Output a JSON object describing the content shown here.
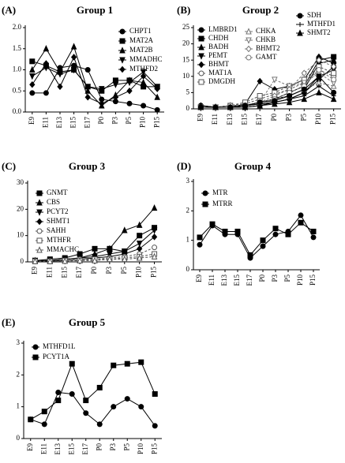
{
  "chart_data": [
    {
      "type": "line",
      "label": "(A)",
      "title": "Group 1",
      "categories": [
        "E9",
        "E11",
        "E13",
        "E15",
        "E17",
        "P0",
        "P3",
        "P5",
        "P10",
        "P15"
      ],
      "ylim": [
        0,
        2
      ],
      "yticks": [
        {
          "value": 0,
          "label": "0.0"
        },
        {
          "value": 0.5,
          "label": "0.5"
        },
        {
          "value": 1,
          "label": "1.0"
        },
        {
          "value": 1.5,
          "label": "1.5"
        },
        {
          "value": 2,
          "label": "2.0"
        }
      ],
      "series": [
        {
          "name": "CHPT1",
          "color": "#000000",
          "marker": "circle",
          "values": [
            0.45,
            0.45,
            1.05,
            1.1,
            1.0,
            0.3,
            0.25,
            0.2,
            0.15,
            0.05
          ]
        },
        {
          "name": "MAT2A",
          "color": "#000000",
          "marker": "square",
          "values": [
            1.2,
            1.1,
            0.95,
            1.0,
            0.6,
            0.5,
            0.75,
            0.75,
            0.6,
            0.6
          ]
        },
        {
          "name": "MAT2B",
          "color": "#000000",
          "marker": "triangle",
          "values": [
            1.0,
            1.5,
            0.95,
            1.55,
            0.5,
            0.15,
            0.4,
            0.75,
            0.7,
            0.35
          ]
        },
        {
          "name": "MMADHC",
          "color": "#000000",
          "marker": "triangle-down",
          "values": [
            0.85,
            1.05,
            0.9,
            1.0,
            0.6,
            0.55,
            0.65,
            0.7,
            0.95,
            0.6
          ]
        },
        {
          "name": "MTHFD2",
          "color": "#000000",
          "marker": "diamond",
          "values": [
            0.65,
            1.15,
            0.6,
            1.3,
            0.35,
            0.2,
            0.35,
            0.5,
            0.85,
            0.55
          ]
        }
      ]
    },
    {
      "type": "line",
      "label": "(B)",
      "title": "Group 2",
      "categories": [
        "E9",
        "E11",
        "E13",
        "E15",
        "E17",
        "P0",
        "P3",
        "P5",
        "P10",
        "P15"
      ],
      "ylim": [
        0,
        25
      ],
      "yticks": [
        0,
        5,
        10,
        15,
        20,
        25
      ],
      "series": [
        {
          "name": "LMBRD1",
          "color": "#000000",
          "marker": "circle",
          "values": [
            1,
            0.5,
            0.5,
            0.5,
            1,
            2,
            3,
            5,
            9,
            13
          ]
        },
        {
          "name": "CHDH",
          "color": "#000000",
          "marker": "square",
          "values": [
            0.5,
            0.5,
            0.5,
            1,
            2,
            3,
            5,
            7,
            15,
            16
          ]
        },
        {
          "name": "BADH",
          "color": "#000000",
          "marker": "triangle",
          "values": [
            0.5,
            0.5,
            1,
            1,
            2,
            3,
            4,
            6,
            14,
            15
          ]
        },
        {
          "name": "PEMT",
          "color": "#000000",
          "marker": "triangle-down",
          "values": [
            0.5,
            0.5,
            0.5,
            1,
            1.5,
            2,
            3,
            5,
            10,
            12
          ]
        },
        {
          "name": "BHMT",
          "color": "#000000",
          "marker": "diamond",
          "values": [
            1,
            0.5,
            0.5,
            1.5,
            8.5,
            6,
            7,
            9,
            16,
            14
          ]
        },
        {
          "name": "MAT1A",
          "color": "#555555",
          "marker": "circle-open",
          "values": [
            0.5,
            0.5,
            1,
            1.5,
            3,
            4.5,
            6,
            8,
            12,
            10
          ]
        },
        {
          "name": "DMGDH",
          "color": "#555555",
          "marker": "square-open",
          "values": [
            0.5,
            0.5,
            1,
            2,
            4,
            5,
            7,
            9,
            13,
            11
          ]
        },
        {
          "name": "CHKA",
          "color": "#777777",
          "marker": "triangle-open",
          "values": [
            0.5,
            0.5,
            1,
            1,
            2,
            3,
            4,
            6,
            8,
            7
          ]
        },
        {
          "name": "CHKB",
          "color": "#777777",
          "marker": "triangle-down-open",
          "values": [
            0.5,
            0.5,
            0.5,
            1,
            2,
            9,
            7,
            8,
            11,
            8
          ]
        },
        {
          "name": "BHMT2",
          "color": "#777777",
          "marker": "diamond-open",
          "values": [
            0.5,
            0.5,
            0.5,
            1,
            2,
            4,
            6,
            11,
            15,
            13
          ]
        },
        {
          "name": "GAMT",
          "color": "#777777",
          "marker": "circle-open",
          "values": [
            0.5,
            0.5,
            1,
            1,
            2,
            3,
            5,
            7,
            12,
            9
          ]
        },
        {
          "name": "SDH",
          "color": "#000000",
          "marker": "circle",
          "values": [
            0.5,
            0.5,
            0.5,
            1,
            2,
            2.5,
            4,
            6,
            10,
            5
          ]
        },
        {
          "name": "MTHFD1",
          "color": "#000000",
          "marker": "plus",
          "values": [
            1,
            0.5,
            0.5,
            1,
            1.5,
            2,
            3,
            4,
            7,
            4
          ]
        },
        {
          "name": "SHMT2",
          "color": "#000000",
          "marker": "triangle",
          "values": [
            0.5,
            0.5,
            0.5,
            0.5,
            1,
            1.5,
            2,
            3,
            5,
            3
          ]
        }
      ]
    },
    {
      "type": "line",
      "label": "(C)",
      "title": "Group 3",
      "categories": [
        "E9",
        "E11",
        "E15",
        "E17",
        "P0",
        "P3",
        "P5",
        "P10",
        "P15"
      ],
      "ylim": [
        0,
        30
      ],
      "yticks": [
        0,
        10,
        20,
        30
      ],
      "series": [
        {
          "name": "GNMT",
          "color": "#000000",
          "marker": "square",
          "values": [
            0.5,
            1,
            1.5,
            3,
            5,
            5,
            4,
            10,
            13
          ]
        },
        {
          "name": "CBS",
          "color": "#000000",
          "marker": "triangle",
          "values": [
            0.5,
            0.5,
            1,
            1.5,
            3,
            5,
            12,
            14,
            20.5
          ]
        },
        {
          "name": "PCYT2",
          "color": "#000000",
          "marker": "triangle-down",
          "values": [
            0.5,
            0.5,
            1,
            1.5,
            2,
            3,
            4,
            7,
            12
          ]
        },
        {
          "name": "SHMT1",
          "color": "#000000",
          "marker": "diamond",
          "values": [
            0.3,
            0.3,
            0.5,
            1,
            1.5,
            2,
            3,
            5,
            9.5
          ]
        },
        {
          "name": "SAHH",
          "color": "#555555",
          "marker": "circle-open",
          "values": [
            0.3,
            0.3,
            0.5,
            1,
            1,
            1.5,
            2,
            3,
            5.5
          ]
        },
        {
          "name": "MTHFR",
          "color": "#555555",
          "marker": "square-open",
          "values": [
            0.2,
            0.2,
            0.5,
            0.5,
            1,
            1,
            1.5,
            2,
            3
          ]
        },
        {
          "name": "MMACHC",
          "color": "#555555",
          "marker": "triangle-open",
          "values": [
            0.2,
            0.2,
            0.3,
            0.5,
            0.5,
            1,
            1,
            1.5,
            2
          ]
        }
      ]
    },
    {
      "type": "line",
      "label": "(D)",
      "title": "Group 4",
      "categories": [
        "E9",
        "E11",
        "E13",
        "E15",
        "E17",
        "P0",
        "P3",
        "P5",
        "P10",
        "P15"
      ],
      "ylim": [
        0,
        3
      ],
      "yticks": [
        0,
        1,
        2,
        3
      ],
      "series": [
        {
          "name": "MTR",
          "color": "#000000",
          "marker": "circle",
          "values": [
            0.85,
            1.5,
            1.2,
            1.2,
            0.4,
            0.8,
            1.2,
            1.3,
            1.85,
            1.1
          ]
        },
        {
          "name": "MTRR",
          "color": "#000000",
          "marker": "square",
          "values": [
            1.1,
            1.55,
            1.3,
            1.3,
            0.5,
            1.0,
            1.4,
            1.2,
            1.6,
            1.3
          ]
        }
      ]
    },
    {
      "type": "line",
      "label": "(E)",
      "title": "Group 5",
      "categories": [
        "E9",
        "E11",
        "E13",
        "E15",
        "E17",
        "P0",
        "P3",
        "P5",
        "P10",
        "P15"
      ],
      "ylim": [
        0,
        3
      ],
      "yticks": [
        0,
        1,
        2,
        3
      ],
      "series": [
        {
          "name": "MTHFD1L",
          "color": "#000000",
          "marker": "circle",
          "values": [
            0.6,
            0.45,
            1.45,
            1.4,
            0.8,
            0.45,
            1.0,
            1.25,
            1.0,
            0.4
          ]
        },
        {
          "name": "PCYT1A",
          "color": "#000000",
          "marker": "square",
          "values": [
            0.6,
            0.85,
            1.2,
            2.35,
            1.2,
            1.6,
            2.3,
            2.35,
            2.4,
            1.4
          ]
        }
      ]
    }
  ]
}
